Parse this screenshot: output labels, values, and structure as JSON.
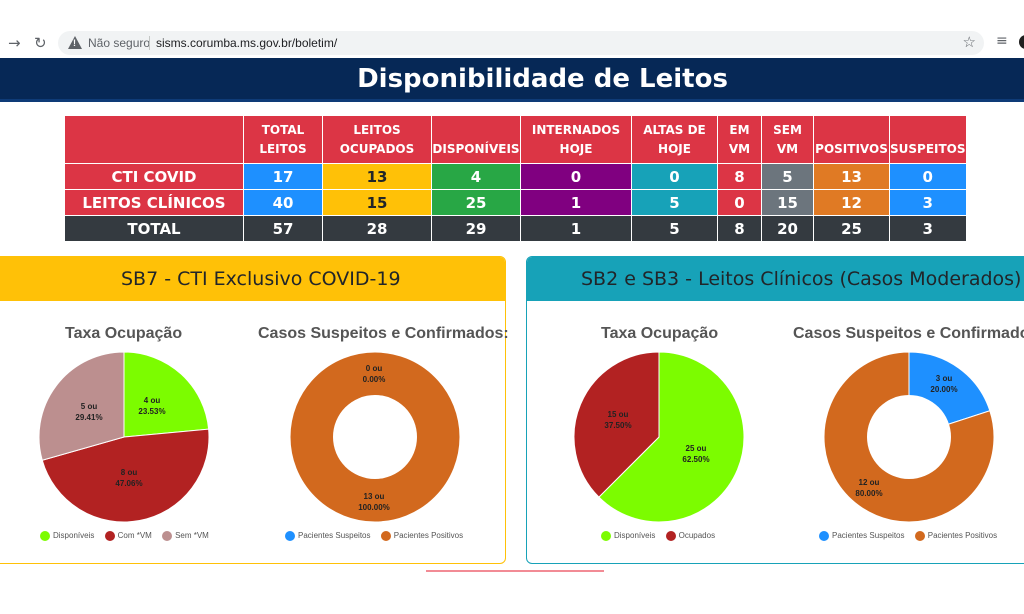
{
  "browser": {
    "back_icon": "arrow-right-icon",
    "reload_icon": "reload-icon",
    "security_label": "Não seguro",
    "url": "sisms.corumba.ms.gov.br/boletim/"
  },
  "page_title": "Disponibilidade de Leitos",
  "table": {
    "headers": [
      "",
      "TOTAL LEITOS",
      "LEITOS OCUPADOS",
      "DISPONÍVEIS",
      "INTERNADOS HOJE",
      "ALTAS DE HOJE",
      "EM VM",
      "SEM VM",
      "POSITIVOS",
      "SUSPEITOS"
    ],
    "rows": [
      {
        "label": "CTI COVID",
        "values": [
          "17",
          "13",
          "4",
          "0",
          "0",
          "8",
          "5",
          "13",
          "0"
        ]
      },
      {
        "label": "LEITOS CLÍNICOS",
        "values": [
          "40",
          "15",
          "25",
          "1",
          "5",
          "0",
          "15",
          "12",
          "3"
        ]
      },
      {
        "label": "TOTAL",
        "values": [
          "57",
          "28",
          "29",
          "1",
          "5",
          "8",
          "20",
          "25",
          "3"
        ]
      }
    ]
  },
  "colors": {
    "disponiveis": "#7cfc00",
    "ocupados": "#b22222",
    "sem_vm": "#bc8f8f",
    "suspeitos": "#1e90ff",
    "positivos": "#d2691e",
    "card_left": "#ffc107",
    "card_right": "#17a2b8"
  },
  "card_left": {
    "title": "SB7 - CTI Exclusivo COVID-19",
    "chart1": {
      "title": "Taxa Ocupação",
      "labels": [
        {
          "l1": "4 ou",
          "l2": "23.53%"
        },
        {
          "l1": "8 ou",
          "l2": "47.06%"
        },
        {
          "l1": "5 ou",
          "l2": "29.41%"
        }
      ],
      "legend": [
        "Disponíveis",
        "Com *VM",
        "Sem *VM"
      ]
    },
    "chart2": {
      "title": "Casos Suspeitos e Confirmados:",
      "labels": [
        {
          "l1": "0 ou",
          "l2": "0.00%"
        },
        {
          "l1": "13 ou",
          "l2": "100.00%"
        }
      ],
      "legend": [
        "Pacientes Suspeitos",
        "Pacientes Positivos"
      ]
    }
  },
  "card_right": {
    "title": "SB2 e SB3 - Leitos Clínicos (Casos Moderados)",
    "chart1": {
      "title": "Taxa Ocupação",
      "labels": [
        {
          "l1": "25 ou",
          "l2": "62.50%"
        },
        {
          "l1": "15 ou",
          "l2": "37.50%"
        }
      ],
      "legend": [
        "Disponíveis",
        "Ocupados"
      ]
    },
    "chart2": {
      "title": "Casos Suspeitos e Confirmados:",
      "labels": [
        {
          "l1": "3 ou",
          "l2": "20.00%"
        },
        {
          "l1": "12 ou",
          "l2": "80.00%"
        }
      ],
      "legend": [
        "Pacientes Suspeitos",
        "Pacientes Positivos"
      ]
    }
  },
  "chart_data": [
    {
      "type": "pie",
      "title": "Taxa Ocupação",
      "categories": [
        "Disponíveis",
        "Com *VM",
        "Sem *VM"
      ],
      "values": [
        4,
        8,
        5
      ],
      "percent": [
        23.53,
        47.06,
        29.41
      ],
      "colors": [
        "#7cfc00",
        "#b22222",
        "#bc8f8f"
      ],
      "legend_position": "bottom"
    },
    {
      "type": "pie",
      "title": "Casos Suspeitos e Confirmados:",
      "donut": true,
      "categories": [
        "Pacientes Suspeitos",
        "Pacientes Positivos"
      ],
      "values": [
        0,
        13
      ],
      "percent": [
        0.0,
        100.0
      ],
      "colors": [
        "#1e90ff",
        "#d2691e"
      ],
      "legend_position": "bottom"
    },
    {
      "type": "pie",
      "title": "Taxa Ocupação",
      "categories": [
        "Disponíveis",
        "Ocupados"
      ],
      "values": [
        25,
        15
      ],
      "percent": [
        62.5,
        37.5
      ],
      "colors": [
        "#7cfc00",
        "#b22222"
      ],
      "legend_position": "bottom"
    },
    {
      "type": "pie",
      "title": "Casos Suspeitos e Confirmados:",
      "donut": true,
      "categories": [
        "Pacientes Suspeitos",
        "Pacientes Positivos"
      ],
      "values": [
        3,
        12
      ],
      "percent": [
        20.0,
        80.0
      ],
      "colors": [
        "#1e90ff",
        "#d2691e"
      ],
      "legend_position": "bottom"
    }
  ]
}
